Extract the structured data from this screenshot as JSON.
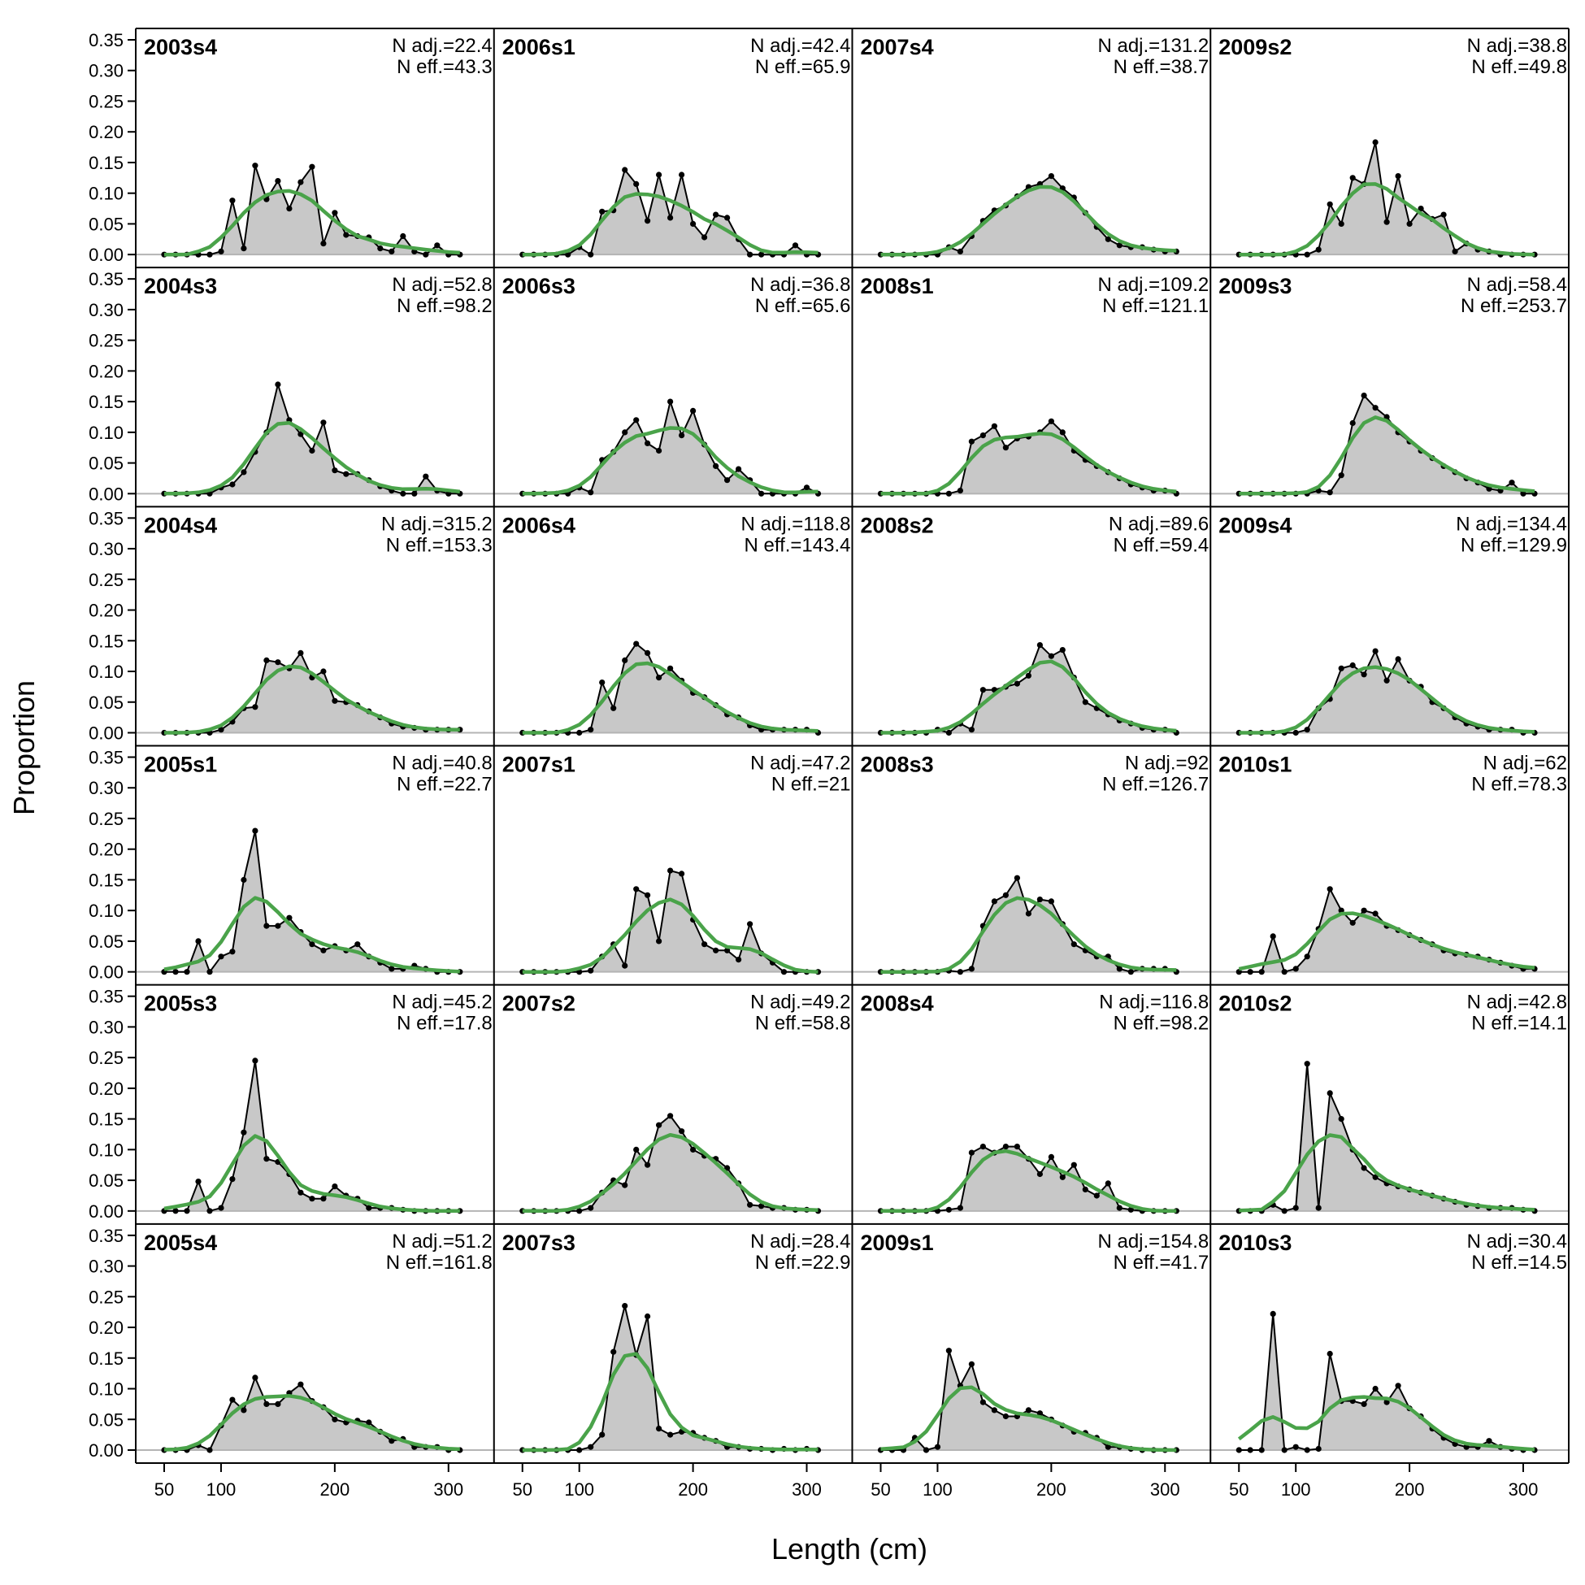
{
  "chart_data": {
    "type": "area",
    "xlabel": "Length (cm)",
    "ylabel": "Proportion",
    "xlim": [
      50,
      315
    ],
    "ylim": [
      0,
      0.35
    ],
    "x_ticks": [
      50,
      100,
      200,
      300
    ],
    "y_ticks": [
      "0.00",
      "0.05",
      "0.10",
      "0.15",
      "0.20",
      "0.25",
      "0.30",
      "0.35"
    ],
    "x": [
      50,
      60,
      70,
      80,
      90,
      100,
      110,
      120,
      130,
      140,
      150,
      160,
      170,
      180,
      190,
      200,
      210,
      220,
      230,
      240,
      250,
      260,
      270,
      280,
      290,
      300,
      310
    ],
    "legend": "none",
    "grid": false,
    "colors": {
      "observed_fill": "#c8c8c8",
      "observed_line": "#000000",
      "expected_line": "#4aa34a",
      "zero_line": "#b4b4b4",
      "frame": "#000000"
    },
    "panels": [
      {
        "label": "2003s4",
        "n_adj": "N adj.=22.4",
        "n_eff": "N eff.=43.3",
        "observed": [
          0,
          0,
          0,
          0,
          0,
          0.005,
          0.088,
          0.01,
          0.145,
          0.09,
          0.12,
          0.075,
          0.118,
          0.143,
          0.018,
          0.068,
          0.032,
          0.03,
          0.028,
          0.01,
          0.005,
          0.03,
          0.005,
          0,
          0.015,
          0,
          0
        ]
      },
      {
        "label": "2006s1",
        "n_adj": "N adj.=42.4",
        "n_eff": "N eff.=65.9",
        "observed": [
          0,
          0,
          0,
          0,
          0,
          0.012,
          0,
          0.07,
          0.072,
          0.138,
          0.115,
          0.055,
          0.13,
          0.06,
          0.13,
          0.05,
          0.028,
          0.065,
          0.06,
          0.025,
          0,
          0,
          0,
          0,
          0.015,
          0,
          0
        ]
      },
      {
        "label": "2007s4",
        "n_adj": "N adj.=131.2",
        "n_eff": "N eff.=38.7",
        "observed": [
          0,
          0,
          0,
          0,
          0,
          0,
          0.012,
          0.005,
          0.03,
          0.055,
          0.072,
          0.08,
          0.095,
          0.11,
          0.115,
          0.128,
          0.108,
          0.093,
          0.068,
          0.045,
          0.025,
          0.015,
          0.012,
          0.012,
          0.008,
          0.005,
          0.005
        ]
      },
      {
        "label": "2009s2",
        "n_adj": "N adj.=38.8",
        "n_eff": "N eff.=49.8",
        "observed": [
          0,
          0,
          0,
          0,
          0,
          0,
          0,
          0.008,
          0.082,
          0.05,
          0.125,
          0.115,
          0.183,
          0.053,
          0.128,
          0.05,
          0.075,
          0.058,
          0.065,
          0.005,
          0.018,
          0.008,
          0.005,
          0,
          0,
          0,
          0
        ]
      },
      {
        "label": "2004s3",
        "n_adj": "N adj.=52.8",
        "n_eff": "N eff.=98.2",
        "observed": [
          0,
          0,
          0,
          0,
          0,
          0.01,
          0.015,
          0.035,
          0.068,
          0.1,
          0.178,
          0.12,
          0.097,
          0.07,
          0.116,
          0.038,
          0.032,
          0.032,
          0.022,
          0.012,
          0.005,
          0,
          0,
          0.028,
          0.005,
          0,
          0
        ]
      },
      {
        "label": "2006s3",
        "n_adj": "N adj.=36.8",
        "n_eff": "N eff.=65.6",
        "observed": [
          0,
          0,
          0,
          0,
          0,
          0.01,
          0.002,
          0.055,
          0.068,
          0.1,
          0.12,
          0.082,
          0.07,
          0.15,
          0.095,
          0.135,
          0.08,
          0.045,
          0.022,
          0.04,
          0.022,
          0,
          0,
          0,
          0,
          0.01,
          0
        ]
      },
      {
        "label": "2008s1",
        "n_adj": "N adj.=109.2",
        "n_eff": "N eff.=121.1",
        "observed": [
          0,
          0,
          0,
          0,
          0,
          0,
          0,
          0.005,
          0.085,
          0.095,
          0.11,
          0.075,
          0.09,
          0.093,
          0.1,
          0.118,
          0.1,
          0.07,
          0.055,
          0.045,
          0.035,
          0.025,
          0.015,
          0.01,
          0.005,
          0.005,
          0
        ]
      },
      {
        "label": "2009s3",
        "n_adj": "N adj.=58.4",
        "n_eff": "N eff.=253.7",
        "observed": [
          0,
          0,
          0,
          0,
          0,
          0,
          0,
          0.005,
          0.002,
          0.03,
          0.115,
          0.16,
          0.14,
          0.125,
          0.1,
          0.085,
          0.07,
          0.058,
          0.045,
          0.035,
          0.025,
          0.018,
          0.008,
          0.005,
          0.018,
          0,
          0
        ]
      },
      {
        "label": "2004s4",
        "n_adj": "N adj.=315.2",
        "n_eff": "N eff.=153.3",
        "observed": [
          0,
          0,
          0,
          0,
          0,
          0.005,
          0.018,
          0.04,
          0.042,
          0.118,
          0.115,
          0.105,
          0.13,
          0.09,
          0.1,
          0.052,
          0.05,
          0.045,
          0.035,
          0.025,
          0.015,
          0.01,
          0.008,
          0.005,
          0.005,
          0.005,
          0.005
        ]
      },
      {
        "label": "2006s4",
        "n_adj": "N adj.=118.8",
        "n_eff": "N eff.=143.4",
        "observed": [
          0,
          0,
          0,
          0,
          0,
          0,
          0.005,
          0.082,
          0.04,
          0.118,
          0.145,
          0.13,
          0.09,
          0.105,
          0.085,
          0.065,
          0.058,
          0.045,
          0.03,
          0.025,
          0.012,
          0.005,
          0.005,
          0.005,
          0.005,
          0.005,
          0
        ]
      },
      {
        "label": "2008s2",
        "n_adj": "N adj.=89.6",
        "n_eff": "N eff.=59.4",
        "observed": [
          0,
          0,
          0,
          0,
          0,
          0.005,
          0,
          0.015,
          0.005,
          0.07,
          0.07,
          0.075,
          0.08,
          0.093,
          0.143,
          0.125,
          0.135,
          0.09,
          0.05,
          0.04,
          0.03,
          0.02,
          0.015,
          0.008,
          0.005,
          0.005,
          0
        ]
      },
      {
        "label": "2009s4",
        "n_adj": "N adj.=134.4",
        "n_eff": "N eff.=129.9",
        "observed": [
          0,
          0,
          0,
          0,
          0,
          0,
          0.005,
          0.04,
          0.055,
          0.105,
          0.11,
          0.095,
          0.133,
          0.085,
          0.12,
          0.085,
          0.075,
          0.05,
          0.04,
          0.025,
          0.015,
          0.01,
          0.005,
          0.005,
          0.005,
          0,
          0
        ]
      },
      {
        "label": "2005s1",
        "n_adj": "N adj.=40.8",
        "n_eff": "N eff.=22.7",
        "observed": [
          0,
          0,
          0,
          0.05,
          0,
          0.025,
          0.033,
          0.15,
          0.23,
          0.075,
          0.075,
          0.088,
          0.065,
          0.045,
          0.035,
          0.042,
          0.035,
          0.045,
          0.025,
          0.015,
          0.005,
          0.005,
          0.01,
          0.005,
          0,
          0,
          0
        ]
      },
      {
        "label": "2007s1",
        "n_adj": "N adj.=47.2",
        "n_eff": "N eff.=21",
        "observed": [
          0,
          0,
          0,
          0,
          0,
          0,
          0.002,
          0.025,
          0.045,
          0.01,
          0.135,
          0.125,
          0.05,
          0.165,
          0.16,
          0.085,
          0.045,
          0.035,
          0.035,
          0.02,
          0.078,
          0.03,
          0.015,
          0,
          0,
          0,
          0
        ]
      },
      {
        "label": "2008s3",
        "n_adj": "N adj.=92",
        "n_eff": "N eff.=126.7",
        "observed": [
          0,
          0,
          0,
          0,
          0,
          0,
          0.002,
          0,
          0.005,
          0.075,
          0.115,
          0.125,
          0.153,
          0.095,
          0.118,
          0.115,
          0.078,
          0.045,
          0.035,
          0.025,
          0.025,
          0.005,
          0,
          0.005,
          0.005,
          0.005,
          0
        ]
      },
      {
        "label": "2010s1",
        "n_adj": "N adj.=62",
        "n_eff": "N eff.=78.3",
        "observed": [
          0,
          0,
          0,
          0.058,
          0,
          0.005,
          0.025,
          0.07,
          0.135,
          0.1,
          0.08,
          0.1,
          0.095,
          0.075,
          0.068,
          0.06,
          0.052,
          0.045,
          0.035,
          0.03,
          0.028,
          0.025,
          0.02,
          0.015,
          0.01,
          0.005,
          0.005
        ]
      },
      {
        "label": "2005s3",
        "n_adj": "N adj.=45.2",
        "n_eff": "N eff.=17.8",
        "observed": [
          0,
          0,
          0,
          0.048,
          0,
          0.005,
          0.052,
          0.128,
          0.245,
          0.085,
          0.08,
          0.06,
          0.03,
          0.02,
          0.02,
          0.04,
          0.025,
          0.02,
          0.005,
          0.005,
          0.005,
          0.002,
          0,
          0,
          0,
          0,
          0
        ]
      },
      {
        "label": "2007s2",
        "n_adj": "N adj.=49.2",
        "n_eff": "N eff.=58.8",
        "observed": [
          0,
          0,
          0,
          0,
          0,
          0,
          0.005,
          0.03,
          0.05,
          0.042,
          0.1,
          0.075,
          0.14,
          0.155,
          0.13,
          0.1,
          0.09,
          0.085,
          0.07,
          0.045,
          0.01,
          0.008,
          0.005,
          0.005,
          0.002,
          0.002,
          0
        ]
      },
      {
        "label": "2008s4",
        "n_adj": "N adj.=116.8",
        "n_eff": "N eff.=98.2",
        "observed": [
          0,
          0,
          0,
          0,
          0,
          0,
          0.002,
          0.005,
          0.095,
          0.105,
          0.095,
          0.105,
          0.105,
          0.085,
          0.06,
          0.088,
          0.055,
          0.075,
          0.035,
          0.025,
          0.045,
          0.005,
          0.002,
          0,
          0,
          0,
          0
        ]
      },
      {
        "label": "2010s2",
        "n_adj": "N adj.=42.8",
        "n_eff": "N eff.=14.1",
        "observed": [
          0,
          0,
          0,
          0.01,
          0,
          0.005,
          0.24,
          0.005,
          0.192,
          0.15,
          0.1,
          0.07,
          0.055,
          0.045,
          0.04,
          0.035,
          0.03,
          0.025,
          0.02,
          0.015,
          0.01,
          0.008,
          0.005,
          0.005,
          0.005,
          0.002,
          0
        ]
      },
      {
        "label": "2005s4",
        "n_adj": "N adj.=51.2",
        "n_eff": "N eff.=161.8",
        "observed": [
          0,
          0,
          0,
          0.008,
          0,
          0.04,
          0.082,
          0.065,
          0.118,
          0.075,
          0.075,
          0.093,
          0.107,
          0.08,
          0.07,
          0.05,
          0.045,
          0.048,
          0.045,
          0.03,
          0.015,
          0.018,
          0.005,
          0.005,
          0.005,
          0,
          0
        ]
      },
      {
        "label": "2007s3",
        "n_adj": "N adj.=28.4",
        "n_eff": "N eff.=22.9",
        "observed": [
          0,
          0,
          0,
          0,
          0,
          0,
          0.005,
          0.025,
          0.16,
          0.235,
          0.155,
          0.218,
          0.035,
          0.025,
          0.03,
          0.028,
          0.02,
          0.015,
          0.005,
          0.005,
          0.002,
          0.002,
          0,
          0.002,
          0,
          0.002,
          0
        ]
      },
      {
        "label": "2009s1",
        "n_adj": "N adj.=154.8",
        "n_eff": "N eff.=41.7",
        "observed": [
          0,
          0,
          0,
          0.02,
          0,
          0.005,
          0.162,
          0.105,
          0.14,
          0.078,
          0.065,
          0.055,
          0.055,
          0.065,
          0.06,
          0.05,
          0.04,
          0.03,
          0.028,
          0.02,
          0.005,
          0.005,
          0.002,
          0,
          0,
          0,
          0
        ]
      },
      {
        "label": "2010s3",
        "n_adj": "N adj.=30.4",
        "n_eff": "N eff.=14.5",
        "observed": [
          0,
          0,
          0,
          0.222,
          0,
          0.005,
          0,
          0.002,
          0.157,
          0.08,
          0.08,
          0.075,
          0.1,
          0.078,
          0.105,
          0.068,
          0.055,
          0.035,
          0.02,
          0.01,
          0.005,
          0.005,
          0.015,
          0.005,
          0.002,
          0,
          0
        ]
      }
    ]
  }
}
